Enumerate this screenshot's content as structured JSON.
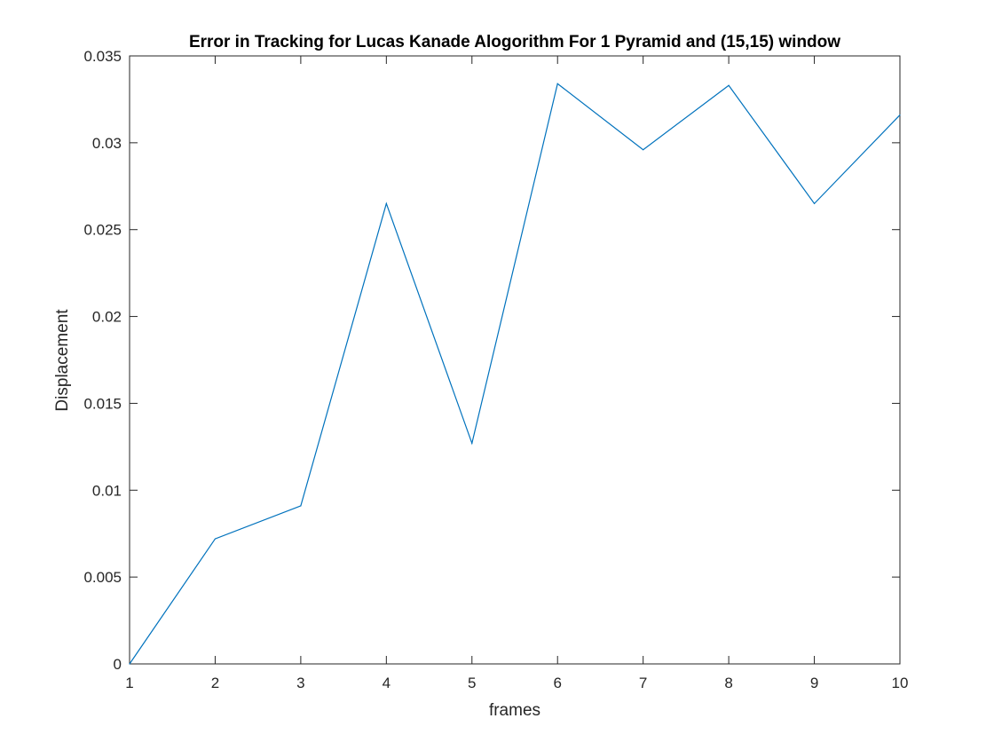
{
  "chart_data": {
    "type": "line",
    "title": "Error in Tracking for Lucas Kanade Alogorithm For 1 Pyramid and (15,15) window",
    "xlabel": "frames",
    "ylabel": "Displacement",
    "xlim": [
      1,
      10
    ],
    "ylim": [
      0,
      0.035
    ],
    "x_ticks": [
      1,
      2,
      3,
      4,
      5,
      6,
      7,
      8,
      9,
      10
    ],
    "x_tick_labels": [
      "1",
      "2",
      "3",
      "4",
      "5",
      "6",
      "7",
      "8",
      "9",
      "10"
    ],
    "y_ticks": [
      0,
      0.005,
      0.01,
      0.015,
      0.02,
      0.025,
      0.03,
      0.035
    ],
    "y_tick_labels": [
      "0",
      "0.005",
      "0.01",
      "0.015",
      "0.02",
      "0.025",
      "0.03",
      "0.035"
    ],
    "grid": false,
    "legend": "none",
    "series": [
      {
        "color": "#0072BD",
        "x": [
          1,
          2,
          3,
          4,
          5,
          6,
          7,
          8,
          9,
          10
        ],
        "y": [
          0,
          0.0072,
          0.0091,
          0.0265,
          0.0127,
          0.0334,
          0.0296,
          0.0333,
          0.0265,
          0.0316
        ]
      }
    ],
    "colors": {
      "axes": "#262626",
      "line": "#0072BD",
      "background": "#FFFFFF"
    }
  }
}
